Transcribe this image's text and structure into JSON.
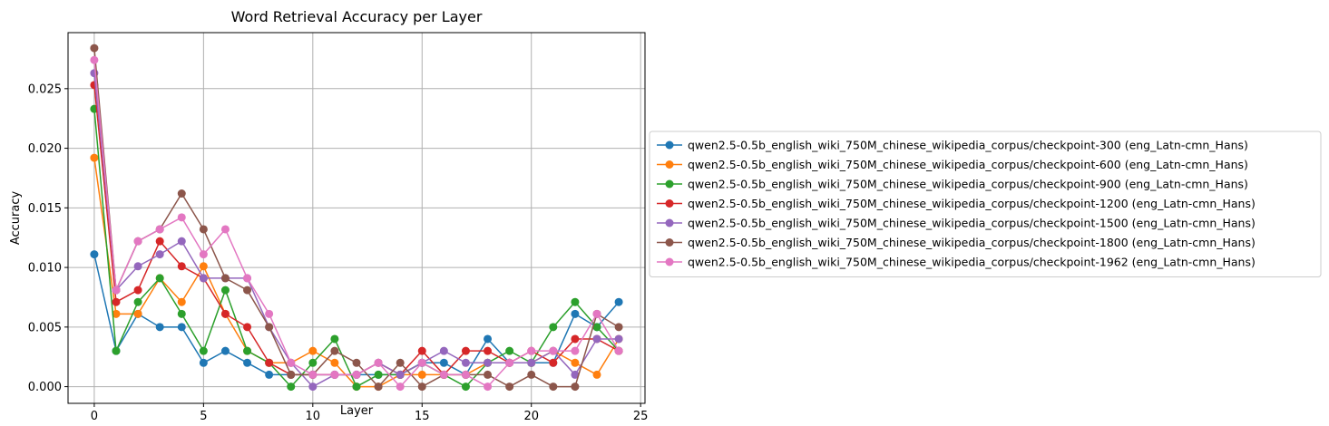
{
  "chart_data": {
    "type": "line",
    "title": "Word Retrieval Accuracy per Layer",
    "xlabel": "Layer",
    "ylabel": "Accuracy",
    "xlim": [
      -1.2,
      25.2
    ],
    "ylim": [
      -0.0014,
      0.0297
    ],
    "xticks": [
      0,
      5,
      10,
      15,
      20,
      25
    ],
    "yticks": [
      0.0,
      0.005,
      0.01,
      0.015,
      0.02,
      0.025
    ],
    "ytick_labels": [
      "0.000",
      "0.005",
      "0.010",
      "0.015",
      "0.020",
      "0.025"
    ],
    "grid": true,
    "legend_position": "outside-right",
    "x": [
      0,
      1,
      2,
      3,
      4,
      5,
      6,
      7,
      8,
      9,
      10,
      11,
      12,
      13,
      14,
      15,
      16,
      17,
      18,
      19,
      20,
      21,
      22,
      23,
      24
    ],
    "series": [
      {
        "name": "qwen2.5-0.5b_english_wiki_750M_chinese_wikipedia_corpus/checkpoint-300 (eng_Latn-cmn_Hans)",
        "color": "#1f77b4",
        "values": [
          0.0111,
          0.003,
          0.0061,
          0.005,
          0.005,
          0.002,
          0.003,
          0.002,
          0.001,
          0.001,
          0.001,
          0.001,
          0.001,
          0.001,
          0.001,
          0.002,
          0.002,
          0.001,
          0.004,
          0.002,
          0.002,
          0.002,
          0.0061,
          0.005,
          0.0071
        ]
      },
      {
        "name": "qwen2.5-0.5b_english_wiki_750M_chinese_wikipedia_corpus/checkpoint-600 (eng_Latn-cmn_Hans)",
        "color": "#ff7f0e",
        "values": [
          0.0192,
          0.0061,
          0.0061,
          0.0091,
          0.0071,
          0.0101,
          0.0061,
          0.003,
          0.002,
          0.002,
          0.003,
          0.002,
          0.0,
          0.0,
          0.001,
          0.001,
          0.001,
          0.001,
          0.002,
          0.002,
          0.002,
          0.003,
          0.002,
          0.001,
          0.004
        ]
      },
      {
        "name": "qwen2.5-0.5b_english_wiki_750M_chinese_wikipedia_corpus/checkpoint-900 (eng_Latn-cmn_Hans)",
        "color": "#2ca02c",
        "values": [
          0.0233,
          0.003,
          0.0071,
          0.0091,
          0.0061,
          0.003,
          0.0081,
          0.003,
          0.002,
          0.0,
          0.002,
          0.004,
          0.0,
          0.001,
          0.001,
          0.002,
          0.001,
          0.0,
          0.002,
          0.003,
          0.002,
          0.005,
          0.0071,
          0.005,
          0.003
        ]
      },
      {
        "name": "qwen2.5-0.5b_english_wiki_750M_chinese_wikipedia_corpus/checkpoint-1200 (eng_Latn-cmn_Hans)",
        "color": "#d62728",
        "values": [
          0.0253,
          0.0071,
          0.0081,
          0.0122,
          0.0101,
          0.0091,
          0.0061,
          0.005,
          0.002,
          0.001,
          0.001,
          0.001,
          0.001,
          0.002,
          0.001,
          0.003,
          0.001,
          0.003,
          0.003,
          0.002,
          0.003,
          0.002,
          0.004,
          0.004,
          0.003
        ]
      },
      {
        "name": "qwen2.5-0.5b_english_wiki_750M_chinese_wikipedia_corpus/checkpoint-1500 (eng_Latn-cmn_Hans)",
        "color": "#9467bd",
        "values": [
          0.0263,
          0.0081,
          0.0101,
          0.0111,
          0.0122,
          0.0091,
          0.0091,
          0.0091,
          0.005,
          0.002,
          0.0,
          0.001,
          0.001,
          0.002,
          0.001,
          0.002,
          0.003,
          0.002,
          0.002,
          0.002,
          0.002,
          0.003,
          0.001,
          0.004,
          0.004
        ]
      },
      {
        "name": "qwen2.5-0.5b_english_wiki_750M_chinese_wikipedia_corpus/checkpoint-1800 (eng_Latn-cmn_Hans)",
        "color": "#8c564b",
        "values": [
          0.0284,
          0.0081,
          0.0122,
          0.0132,
          0.0162,
          0.0132,
          0.0091,
          0.0081,
          0.005,
          0.001,
          0.001,
          0.003,
          0.002,
          0.0,
          0.002,
          0.0,
          0.001,
          0.001,
          0.001,
          0.0,
          0.001,
          0.0,
          0.0,
          0.0061,
          0.005
        ]
      },
      {
        "name": "qwen2.5-0.5b_english_wiki_750M_chinese_wikipedia_corpus/checkpoint-1962 (eng_Latn-cmn_Hans)",
        "color": "#e377c2",
        "values": [
          0.0274,
          0.0081,
          0.0122,
          0.0132,
          0.0142,
          0.0111,
          0.0132,
          0.0091,
          0.0061,
          0.002,
          0.001,
          0.001,
          0.001,
          0.002,
          0.0,
          0.002,
          0.001,
          0.001,
          0.0,
          0.002,
          0.003,
          0.003,
          0.003,
          0.0061,
          0.003
        ]
      }
    ]
  }
}
